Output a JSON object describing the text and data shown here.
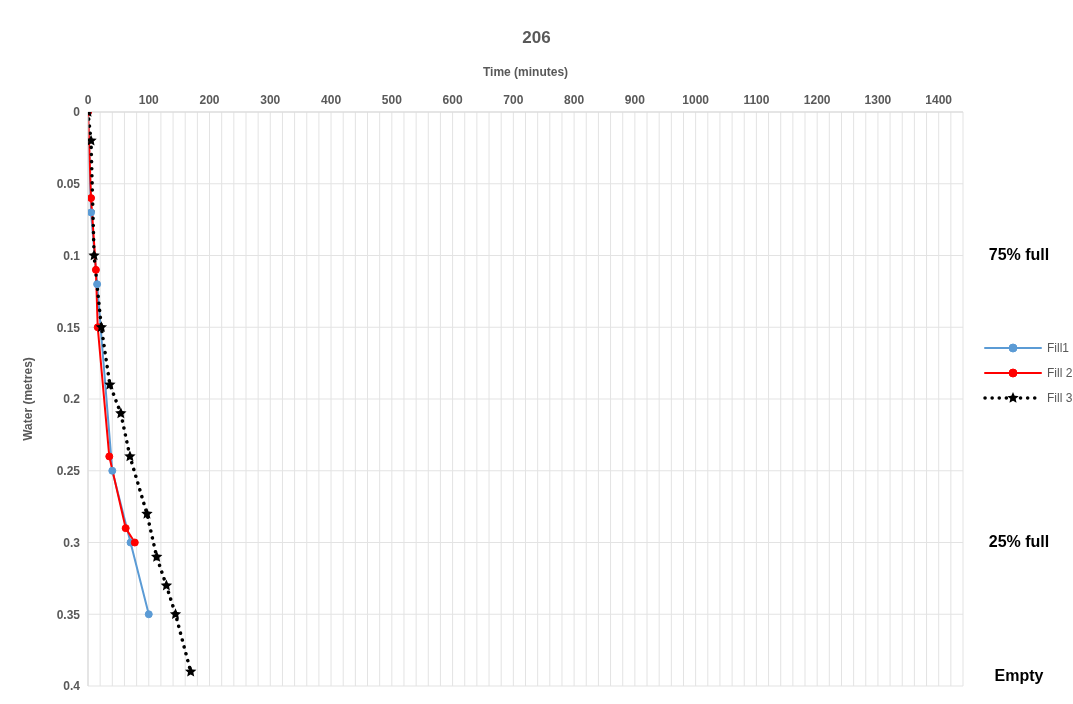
{
  "chart_data": {
    "type": "line",
    "title": "206",
    "xlabel": "Time (minutes)",
    "ylabel": "Water (metres)",
    "xlim": [
      0,
      1440
    ],
    "xticks": [
      0,
      {
        "value": 20,
        "label": null
      },
      {
        "value": 40,
        "label": null
      },
      {
        "value": 60,
        "label": null
      },
      {
        "value": 80,
        "label": null
      },
      100,
      {
        "value": 120,
        "label": null
      },
      {
        "value": 140,
        "label": null
      },
      {
        "value": 160,
        "label": null
      },
      {
        "value": 180,
        "label": null
      },
      200,
      {
        "value": 220,
        "label": null
      },
      {
        "value": 240,
        "label": null
      },
      {
        "value": 260,
        "label": null
      },
      {
        "value": 280,
        "label": null
      },
      300,
      {
        "value": 320,
        "label": null
      },
      {
        "value": 340,
        "label": null
      },
      {
        "value": 360,
        "label": null
      },
      {
        "value": 380,
        "label": null
      },
      400,
      {
        "value": 420,
        "label": null
      },
      {
        "value": 440,
        "label": null
      },
      {
        "value": 460,
        "label": null
      },
      {
        "value": 480,
        "label": null
      },
      500,
      {
        "value": 520,
        "label": null
      },
      {
        "value": 540,
        "label": null
      },
      {
        "value": 560,
        "label": null
      },
      {
        "value": 580,
        "label": null
      },
      600,
      {
        "value": 620,
        "label": null
      },
      {
        "value": 640,
        "label": null
      },
      {
        "value": 660,
        "label": null
      },
      {
        "value": 680,
        "label": null
      },
      700,
      {
        "value": 720,
        "label": null
      },
      {
        "value": 740,
        "label": null
      },
      {
        "value": 760,
        "label": null
      },
      {
        "value": 780,
        "label": null
      },
      800,
      {
        "value": 820,
        "label": null
      },
      {
        "value": 840,
        "label": null
      },
      {
        "value": 860,
        "label": null
      },
      {
        "value": 880,
        "label": null
      },
      900,
      {
        "value": 920,
        "label": null
      },
      {
        "value": 940,
        "label": null
      },
      {
        "value": 960,
        "label": null
      },
      {
        "value": 980,
        "label": null
      },
      1000,
      {
        "value": 1020,
        "label": null
      },
      {
        "value": 1040,
        "label": null
      },
      {
        "value": 1060,
        "label": null
      },
      {
        "value": 1080,
        "label": null
      },
      1100,
      {
        "value": 1120,
        "label": null
      },
      {
        "value": 1140,
        "label": null
      },
      {
        "value": 1160,
        "label": null
      },
      {
        "value": 1180,
        "label": null
      },
      1200,
      {
        "value": 1220,
        "label": null
      },
      {
        "value": 1240,
        "label": null
      },
      {
        "value": 1260,
        "label": null
      },
      {
        "value": 1280,
        "label": null
      },
      1300,
      {
        "value": 1320,
        "label": null
      },
      {
        "value": 1340,
        "label": null
      },
      {
        "value": 1360,
        "label": null
      },
      {
        "value": 1380,
        "label": null
      },
      1400,
      {
        "value": 1420,
        "label": null
      },
      {
        "value": 1440,
        "label": null
      }
    ],
    "ylim": [
      0.4,
      0
    ],
    "yticks": [
      0,
      0.05,
      0.1,
      0.15,
      0.2,
      0.25,
      0.3,
      0.35,
      0.4
    ],
    "grid": true,
    "legend": "right",
    "series": [
      {
        "name": "Fill1",
        "color": "#5b9bd5",
        "marker": "circle",
        "line_style": "solid",
        "x": [
          0,
          5,
          15,
          40,
          70,
          100
        ],
        "values": [
          0,
          0.07,
          0.12,
          0.25,
          0.3,
          0.35
        ]
      },
      {
        "name": "Fill 2",
        "color": "#ff0000",
        "marker": "circle",
        "line_style": "solid",
        "x": [
          0,
          5,
          13,
          16,
          35,
          62,
          77
        ],
        "values": [
          0,
          0.06,
          0.11,
          0.15,
          0.24,
          0.29,
          0.3
        ]
      },
      {
        "name": "Fill 3",
        "color": "#000000",
        "marker": "star",
        "line_style": "dotted",
        "x": [
          0,
          5,
          10,
          22,
          36,
          54,
          69,
          97,
          113,
          129,
          144,
          169
        ],
        "values": [
          0,
          0.02,
          0.1,
          0.15,
          0.19,
          0.21,
          0.24,
          0.28,
          0.31,
          0.33,
          0.35,
          0.39
        ]
      }
    ],
    "annotations": [
      "75% full",
      "25% full",
      "Empty"
    ]
  }
}
